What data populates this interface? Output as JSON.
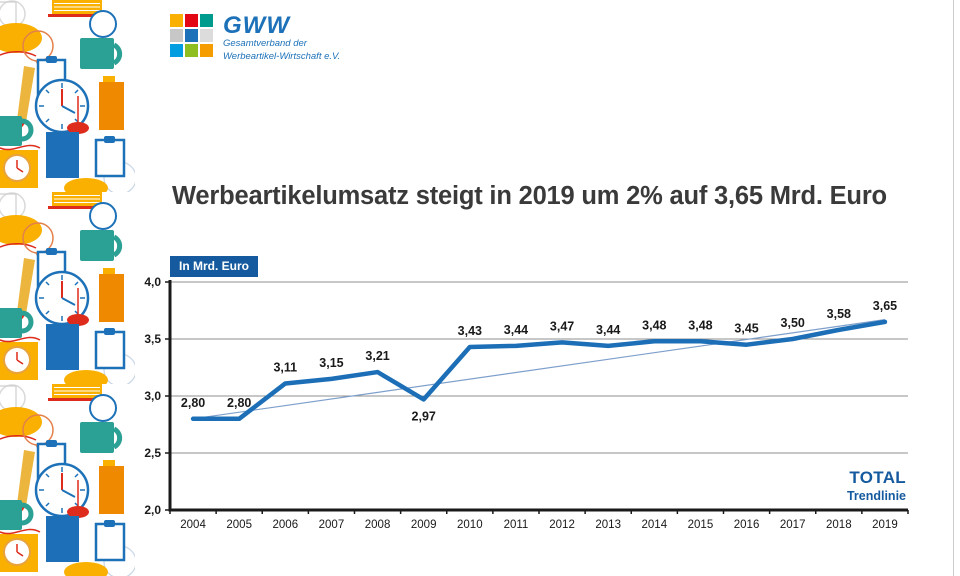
{
  "slide": {
    "title": "Werbeartikelumsatz steigt in 2019 um 2% auf 3,65 Mrd. Euro"
  },
  "logo": {
    "name": "GWW",
    "subtitle_line1": "Gesamtverband der",
    "subtitle_line2": "Werbeartikel-Wirtschaft e.V.",
    "text_color": "#1D71B8",
    "squares": [
      "#F9B000",
      "#E30613",
      "#009B8C",
      "#C7C7C7",
      "#1D71B8",
      "#DCDCDC",
      "#009EE0",
      "#8FBE21",
      "#F59C00"
    ]
  },
  "chart_data": {
    "type": "line",
    "title": "Werbeartikelumsatz steigt in 2019 um 2% auf 3,65 Mrd. Euro",
    "unit_label": "In Mrd. Euro",
    "categories": [
      "2004",
      "2005",
      "2006",
      "2007",
      "2008",
      "2009",
      "2010",
      "2011",
      "2012",
      "2013",
      "2014",
      "2015",
      "2016",
      "2017",
      "2018",
      "2019"
    ],
    "series": [
      {
        "name": "TOTAL",
        "color": "#1C6FB6",
        "values": [
          2.8,
          2.8,
          3.11,
          3.15,
          3.21,
          2.97,
          3.43,
          3.44,
          3.47,
          3.44,
          3.48,
          3.48,
          3.45,
          3.5,
          3.58,
          3.65
        ]
      },
      {
        "name": "Trendlinie",
        "type": "trend",
        "color": "#7E9FCB",
        "start": 2.8,
        "end": 3.67
      }
    ],
    "ylim": [
      2.0,
      4.0
    ],
    "yticks": [
      2.0,
      2.5,
      3.0,
      3.5,
      4.0
    ],
    "grid": true,
    "decimal_separator": ",",
    "legend_position": "bottom-right",
    "label_below_indices": [
      5
    ]
  },
  "legend": {
    "total": "TOTAL",
    "trendline": "Trendlinie",
    "color": "#155A9E"
  }
}
